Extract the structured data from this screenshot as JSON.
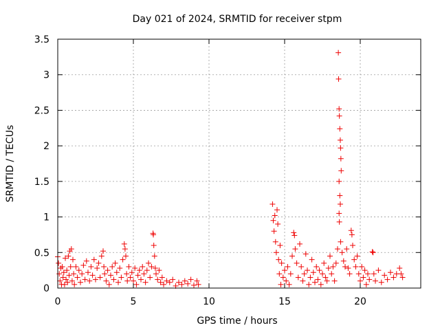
{
  "chart_data": {
    "type": "scatter",
    "title": "Day 021 of 2024, SRMTID for receiver stpm",
    "xlabel": "GPS time / hours",
    "ylabel": "SRMTID / TECUs",
    "xlim": [
      0,
      24
    ],
    "ylim": [
      0,
      3.5
    ],
    "x_ticks": [
      0,
      5,
      10,
      15,
      20
    ],
    "x_tick_labels": [
      "0",
      "5",
      "10",
      "15",
      "20"
    ],
    "y_ticks": [
      0,
      0.5,
      1,
      1.5,
      2,
      2.5,
      3,
      3.5
    ],
    "y_tick_labels": [
      "0",
      "0.5",
      "1",
      "1.5",
      "2",
      "2.5",
      "3",
      "3.5"
    ],
    "grid": true,
    "marker": "+",
    "series": [
      {
        "name": "SRMTID",
        "color": "#ee0000",
        "points": [
          [
            0.0,
            0.44
          ],
          [
            0.05,
            0.35
          ],
          [
            0.1,
            0.2
          ],
          [
            0.15,
            0.1
          ],
          [
            0.2,
            0.28
          ],
          [
            0.25,
            0.05
          ],
          [
            0.3,
            0.3
          ],
          [
            0.35,
            0.15
          ],
          [
            0.4,
            0.22
          ],
          [
            0.45,
            0.05
          ],
          [
            0.5,
            0.42
          ],
          [
            0.55,
            0.12
          ],
          [
            0.6,
            0.25
          ],
          [
            0.65,
            0.08
          ],
          [
            0.7,
            0.45
          ],
          [
            0.75,
            0.18
          ],
          [
            0.8,
            0.52
          ],
          [
            0.85,
            0.3
          ],
          [
            0.9,
            0.55
          ],
          [
            0.95,
            0.1
          ],
          [
            1.0,
            0.4
          ],
          [
            1.05,
            0.2
          ],
          [
            1.1,
            0.05
          ],
          [
            1.2,
            0.3
          ],
          [
            1.3,
            0.15
          ],
          [
            1.4,
            0.25
          ],
          [
            1.5,
            0.08
          ],
          [
            1.6,
            0.2
          ],
          [
            1.7,
            0.32
          ],
          [
            1.8,
            0.12
          ],
          [
            1.9,
            0.38
          ],
          [
            2.0,
            0.22
          ],
          [
            2.1,
            0.1
          ],
          [
            2.2,
            0.3
          ],
          [
            2.3,
            0.18
          ],
          [
            2.4,
            0.4
          ],
          [
            2.5,
            0.12
          ],
          [
            2.6,
            0.28
          ],
          [
            2.7,
            0.35
          ],
          [
            2.8,
            0.15
          ],
          [
            2.9,
            0.45
          ],
          [
            3.0,
            0.52
          ],
          [
            3.05,
            0.3
          ],
          [
            3.1,
            0.2
          ],
          [
            3.2,
            0.1
          ],
          [
            3.3,
            0.25
          ],
          [
            3.4,
            0.05
          ],
          [
            3.5,
            0.18
          ],
          [
            3.6,
            0.3
          ],
          [
            3.7,
            0.12
          ],
          [
            3.8,
            0.35
          ],
          [
            3.9,
            0.22
          ],
          [
            4.0,
            0.08
          ],
          [
            4.1,
            0.28
          ],
          [
            4.2,
            0.15
          ],
          [
            4.3,
            0.4
          ],
          [
            4.4,
            0.62
          ],
          [
            4.45,
            0.55
          ],
          [
            4.5,
            0.45
          ],
          [
            4.55,
            0.2
          ],
          [
            4.6,
            0.1
          ],
          [
            4.7,
            0.3
          ],
          [
            4.8,
            0.15
          ],
          [
            4.9,
            0.22
          ],
          [
            5.0,
            0.1
          ],
          [
            5.1,
            0.28
          ],
          [
            5.2,
            0.05
          ],
          [
            5.3,
            0.18
          ],
          [
            5.4,
            0.25
          ],
          [
            5.5,
            0.12
          ],
          [
            5.6,
            0.3
          ],
          [
            5.7,
            0.2
          ],
          [
            5.8,
            0.08
          ],
          [
            5.9,
            0.25
          ],
          [
            6.0,
            0.35
          ],
          [
            6.1,
            0.15
          ],
          [
            6.2,
            0.3
          ],
          [
            6.3,
            0.77
          ],
          [
            6.32,
            0.75
          ],
          [
            6.35,
            0.6
          ],
          [
            6.4,
            0.45
          ],
          [
            6.45,
            0.28
          ],
          [
            6.5,
            0.2
          ],
          [
            6.6,
            0.12
          ],
          [
            6.7,
            0.25
          ],
          [
            6.8,
            0.08
          ],
          [
            6.9,
            0.15
          ],
          [
            7.0,
            0.05
          ],
          [
            7.2,
            0.1
          ],
          [
            7.4,
            0.08
          ],
          [
            7.6,
            0.12
          ],
          [
            7.8,
            0.03
          ],
          [
            8.0,
            0.08
          ],
          [
            8.2,
            0.05
          ],
          [
            8.4,
            0.1
          ],
          [
            8.6,
            0.06
          ],
          [
            8.8,
            0.12
          ],
          [
            9.0,
            0.04
          ],
          [
            9.2,
            0.1
          ],
          [
            9.3,
            0.05
          ],
          [
            14.2,
            1.18
          ],
          [
            14.25,
            0.95
          ],
          [
            14.3,
            0.8
          ],
          [
            14.35,
            1.02
          ],
          [
            14.4,
            0.65
          ],
          [
            14.45,
            0.5
          ],
          [
            14.5,
            1.1
          ],
          [
            14.55,
            0.9
          ],
          [
            14.6,
            0.4
          ],
          [
            14.65,
            0.2
          ],
          [
            14.7,
            0.6
          ],
          [
            14.75,
            0.05
          ],
          [
            14.8,
            0.35
          ],
          [
            14.9,
            0.15
          ],
          [
            15.0,
            0.25
          ],
          [
            15.1,
            0.1
          ],
          [
            15.2,
            0.3
          ],
          [
            15.3,
            0.05
          ],
          [
            15.4,
            0.2
          ],
          [
            15.5,
            0.45
          ],
          [
            15.6,
            0.78
          ],
          [
            15.65,
            0.74
          ],
          [
            15.7,
            0.55
          ],
          [
            15.8,
            0.35
          ],
          [
            15.9,
            0.15
          ],
          [
            16.0,
            0.62
          ],
          [
            16.1,
            0.3
          ],
          [
            16.2,
            0.1
          ],
          [
            16.3,
            0.2
          ],
          [
            16.4,
            0.48
          ],
          [
            16.5,
            0.25
          ],
          [
            16.6,
            0.05
          ],
          [
            16.7,
            0.15
          ],
          [
            16.8,
            0.4
          ],
          [
            16.9,
            0.22
          ],
          [
            17.0,
            0.08
          ],
          [
            17.1,
            0.3
          ],
          [
            17.2,
            0.12
          ],
          [
            17.3,
            0.25
          ],
          [
            17.4,
            0.05
          ],
          [
            17.5,
            0.2
          ],
          [
            17.6,
            0.35
          ],
          [
            17.7,
            0.15
          ],
          [
            17.8,
            0.1
          ],
          [
            17.9,
            0.28
          ],
          [
            18.0,
            0.45
          ],
          [
            18.1,
            0.2
          ],
          [
            18.2,
            0.3
          ],
          [
            18.3,
            0.1
          ],
          [
            18.4,
            0.35
          ],
          [
            18.5,
            0.55
          ],
          [
            18.55,
            3.31
          ],
          [
            18.57,
            2.94
          ],
          [
            18.6,
            2.52
          ],
          [
            18.62,
            2.42
          ],
          [
            18.65,
            2.24
          ],
          [
            18.68,
            2.08
          ],
          [
            18.7,
            1.97
          ],
          [
            18.72,
            1.82
          ],
          [
            18.74,
            1.65
          ],
          [
            18.6,
            1.5
          ],
          [
            18.65,
            1.3
          ],
          [
            18.68,
            1.18
          ],
          [
            18.6,
            1.05
          ],
          [
            18.62,
            0.93
          ],
          [
            18.7,
            0.65
          ],
          [
            18.8,
            0.5
          ],
          [
            18.9,
            0.38
          ],
          [
            19.0,
            0.3
          ],
          [
            19.1,
            0.55
          ],
          [
            19.2,
            0.28
          ],
          [
            19.3,
            0.2
          ],
          [
            19.4,
            0.81
          ],
          [
            19.45,
            0.75
          ],
          [
            19.5,
            0.6
          ],
          [
            19.6,
            0.4
          ],
          [
            19.7,
            0.3
          ],
          [
            19.8,
            0.45
          ],
          [
            19.9,
            0.2
          ],
          [
            20.0,
            0.1
          ],
          [
            20.1,
            0.3
          ],
          [
            20.2,
            0.15
          ],
          [
            20.3,
            0.25
          ],
          [
            20.4,
            0.05
          ],
          [
            20.5,
            0.2
          ],
          [
            20.6,
            0.12
          ],
          [
            20.8,
            0.51
          ],
          [
            20.85,
            0.5
          ],
          [
            20.9,
            0.2
          ],
          [
            21.0,
            0.1
          ],
          [
            21.2,
            0.25
          ],
          [
            21.4,
            0.08
          ],
          [
            21.6,
            0.18
          ],
          [
            21.8,
            0.12
          ],
          [
            22.0,
            0.22
          ],
          [
            22.2,
            0.15
          ],
          [
            22.4,
            0.2
          ],
          [
            22.6,
            0.28
          ],
          [
            22.7,
            0.2
          ],
          [
            22.8,
            0.15
          ]
        ]
      }
    ]
  }
}
